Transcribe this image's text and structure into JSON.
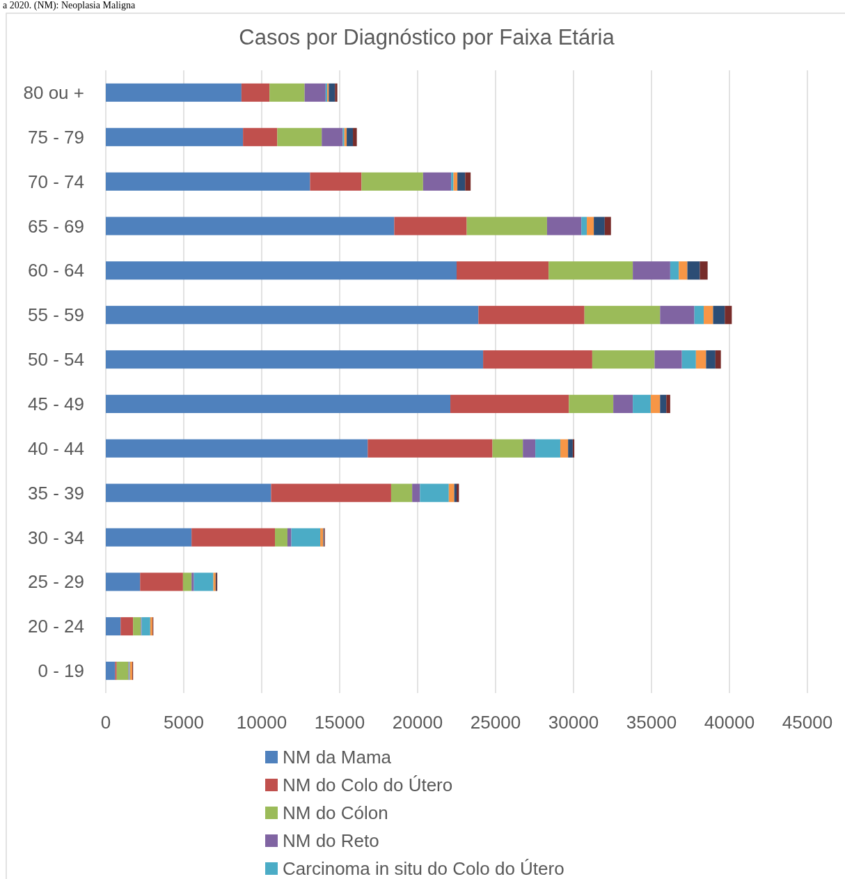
{
  "chart_data": {
    "type": "bar",
    "orientation": "horizontal",
    "stacked": true,
    "title": "Casos por Diagnóstico por Faixa Etária",
    "annotations": [
      "a 2020. (NM): Neoplasia Maligna"
    ],
    "categories": [
      "80 ou +",
      "75 - 79",
      "70 - 74",
      "65 - 69",
      "60 - 64",
      "55 - 59",
      "50 - 54",
      "45 - 49",
      "40 - 44",
      "35 - 39",
      "30 - 34",
      "25 - 29",
      "20 - 24",
      "0 - 19"
    ],
    "series": [
      {
        "name": "NM da Mama",
        "color": "#4f81bd",
        "values": [
          8700,
          8800,
          13100,
          18500,
          22500,
          23900,
          24200,
          22100,
          16800,
          10600,
          5500,
          2200,
          950,
          600
        ]
      },
      {
        "name": "NM do Colo do Útero",
        "color": "#c0504d",
        "values": [
          1800,
          2200,
          3300,
          4650,
          5900,
          6800,
          7000,
          7600,
          8000,
          7700,
          5350,
          2750,
          800,
          100
        ]
      },
      {
        "name": "NM do Cólon",
        "color": "#9bbb59",
        "values": [
          2250,
          2850,
          3950,
          5150,
          5400,
          4850,
          4000,
          2850,
          1950,
          1350,
          800,
          550,
          500,
          750
        ]
      },
      {
        "name": "NM do Reto",
        "color": "#8064a2",
        "values": [
          1350,
          1350,
          1800,
          2200,
          2400,
          2200,
          1750,
          1250,
          800,
          500,
          250,
          150,
          50,
          50
        ]
      },
      {
        "name": "Carcinoma in situ do Colo do Útero",
        "color": "#4bacc6",
        "values": [
          100,
          100,
          150,
          350,
          550,
          600,
          900,
          1150,
          1600,
          1850,
          1850,
          1250,
          550,
          50
        ]
      },
      {
        "color": "#f79646",
        "values": [
          100,
          150,
          250,
          450,
          550,
          600,
          650,
          600,
          500,
          350,
          200,
          150,
          150,
          150
        ]
      },
      {
        "color": "#2c4d75",
        "values": [
          400,
          400,
          500,
          700,
          800,
          750,
          600,
          400,
          300,
          150,
          50,
          50,
          null,
          null
        ]
      },
      {
        "color": "#772c2a",
        "values": [
          150,
          250,
          350,
          400,
          500,
          450,
          350,
          250,
          100,
          150,
          50,
          50,
          50,
          50
        ]
      }
    ],
    "xlim": [
      0,
      45000
    ],
    "xticks": [
      0,
      5000,
      10000,
      15000,
      20000,
      25000,
      30000,
      35000,
      40000,
      45000
    ],
    "grid": "x",
    "legend": "bottom"
  }
}
